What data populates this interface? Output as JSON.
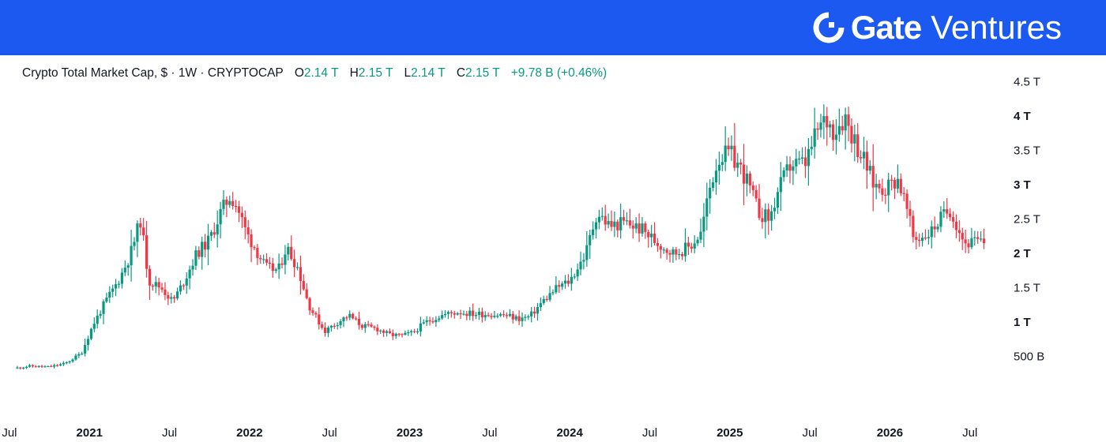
{
  "brand": {
    "name_bold": "Gate",
    "name_light": "Ventures",
    "banner_color": "#1c59f1",
    "logo_icon": "gate-logo-icon"
  },
  "legend": {
    "title": "Crypto Total Market Cap, $ · 1W · CRYPTOCAP",
    "open_label": "O",
    "open_value": "2.14 T",
    "high_label": "H",
    "high_value": "2.15 T",
    "low_label": "L",
    "low_value": "2.14 T",
    "close_label": "C",
    "close_value": "2.15 T",
    "change": "+9.78 B (+0.46%)"
  },
  "chart_data": {
    "type": "candlestick",
    "title": "Crypto Total Market Cap, $ · 1W · CRYPTOCAP",
    "unit": "T (trillion USD)",
    "interval": "1W",
    "up_color": "#089981",
    "down_color": "#f23645",
    "y_ticks": [
      {
        "label": "500 B",
        "value": 0.5,
        "major": false
      },
      {
        "label": "1 T",
        "value": 1.0,
        "major": true
      },
      {
        "label": "1.5 T",
        "value": 1.5,
        "major": false
      },
      {
        "label": "2 T",
        "value": 2.0,
        "major": true
      },
      {
        "label": "2.5 T",
        "value": 2.5,
        "major": false
      },
      {
        "label": "3 T",
        "value": 3.0,
        "major": true
      },
      {
        "label": "3.5 T",
        "value": 3.5,
        "major": false
      },
      {
        "label": "4 T",
        "value": 4.0,
        "major": true
      },
      {
        "label": "4.5 T",
        "value": 4.5,
        "major": false
      }
    ],
    "x_ticks": [
      {
        "label": "Jul",
        "t": 2020.5,
        "major": false
      },
      {
        "label": "2021",
        "t": 2021.0,
        "major": true
      },
      {
        "label": "Jul",
        "t": 2021.5,
        "major": false
      },
      {
        "label": "2022",
        "t": 2022.0,
        "major": true
      },
      {
        "label": "Jul",
        "t": 2022.5,
        "major": false
      },
      {
        "label": "2023",
        "t": 2023.0,
        "major": true
      },
      {
        "label": "Jul",
        "t": 2023.5,
        "major": false
      },
      {
        "label": "2024",
        "t": 2024.0,
        "major": true
      },
      {
        "label": "Jul",
        "t": 2024.5,
        "major": false
      },
      {
        "label": "2025",
        "t": 2025.0,
        "major": true
      },
      {
        "label": "Jul",
        "t": 2025.5,
        "major": false
      },
      {
        "label": "2026",
        "t": 2026.0,
        "major": true
      },
      {
        "label": "Jul",
        "t": 2026.5,
        "major": false
      }
    ],
    "x_range": [
      2020.53,
      2026.6
    ],
    "y_range": [
      0.25,
      4.72
    ],
    "close_path": [
      [
        2020.53,
        0.33
      ],
      [
        2020.62,
        0.36
      ],
      [
        2020.75,
        0.35
      ],
      [
        2020.85,
        0.4
      ],
      [
        2020.95,
        0.55
      ],
      [
        2021.02,
        0.95
      ],
      [
        2021.1,
        1.3
      ],
      [
        2021.18,
        1.6
      ],
      [
        2021.25,
        1.95
      ],
      [
        2021.32,
        2.5
      ],
      [
        2021.37,
        1.6
      ],
      [
        2021.45,
        1.5
      ],
      [
        2021.52,
        1.3
      ],
      [
        2021.58,
        1.55
      ],
      [
        2021.67,
        2.0
      ],
      [
        2021.75,
        2.2
      ],
      [
        2021.82,
        2.6
      ],
      [
        2021.88,
        2.85
      ],
      [
        2021.92,
        2.7
      ],
      [
        2021.98,
        2.3
      ],
      [
        2022.03,
        2.1
      ],
      [
        2022.1,
        1.8
      ],
      [
        2022.18,
        1.75
      ],
      [
        2022.23,
        2.1
      ],
      [
        2022.3,
        1.8
      ],
      [
        2022.37,
        1.25
      ],
      [
        2022.42,
        1.05
      ],
      [
        2022.47,
        0.87
      ],
      [
        2022.55,
        1.0
      ],
      [
        2022.62,
        1.1
      ],
      [
        2022.7,
        0.95
      ],
      [
        2022.8,
        0.9
      ],
      [
        2022.87,
        0.82
      ],
      [
        2022.95,
        0.8
      ],
      [
        2023.02,
        0.85
      ],
      [
        2023.1,
        1.0
      ],
      [
        2023.2,
        1.1
      ],
      [
        2023.3,
        1.15
      ],
      [
        2023.4,
        1.12
      ],
      [
        2023.5,
        1.12
      ],
      [
        2023.6,
        1.1
      ],
      [
        2023.68,
        1.05
      ],
      [
        2023.75,
        1.08
      ],
      [
        2023.83,
        1.3
      ],
      [
        2023.92,
        1.5
      ],
      [
        2024.0,
        1.6
      ],
      [
        2024.1,
        2.0
      ],
      [
        2024.17,
        2.6
      ],
      [
        2024.25,
        2.4
      ],
      [
        2024.35,
        2.45
      ],
      [
        2024.45,
        2.35
      ],
      [
        2024.55,
        2.15
      ],
      [
        2024.65,
        2.0
      ],
      [
        2024.75,
        2.1
      ],
      [
        2024.82,
        2.3
      ],
      [
        2024.88,
        3.0
      ],
      [
        2024.93,
        3.4
      ],
      [
        2025.0,
        3.45
      ],
      [
        2025.05,
        3.3
      ],
      [
        2025.1,
        3.1
      ],
      [
        2025.18,
        2.6
      ],
      [
        2025.25,
        2.5
      ],
      [
        2025.3,
        2.9
      ],
      [
        2025.38,
        3.3
      ],
      [
        2025.47,
        3.3
      ],
      [
        2025.55,
        3.8
      ],
      [
        2025.6,
        3.95
      ],
      [
        2025.65,
        3.8
      ],
      [
        2025.72,
        4.0
      ],
      [
        2025.77,
        3.7
      ],
      [
        2025.85,
        3.3
      ],
      [
        2025.9,
        3.0
      ],
      [
        2025.97,
        2.95
      ],
      [
        2026.05,
        3.1
      ],
      [
        2026.1,
        2.7
      ],
      [
        2026.15,
        2.2
      ],
      [
        2026.25,
        2.3
      ],
      [
        2026.33,
        2.55
      ],
      [
        2026.38,
        2.65
      ],
      [
        2026.42,
        2.4
      ],
      [
        2026.47,
        2.15
      ],
      [
        2026.55,
        2.17
      ],
      [
        2026.6,
        2.15
      ]
    ]
  }
}
